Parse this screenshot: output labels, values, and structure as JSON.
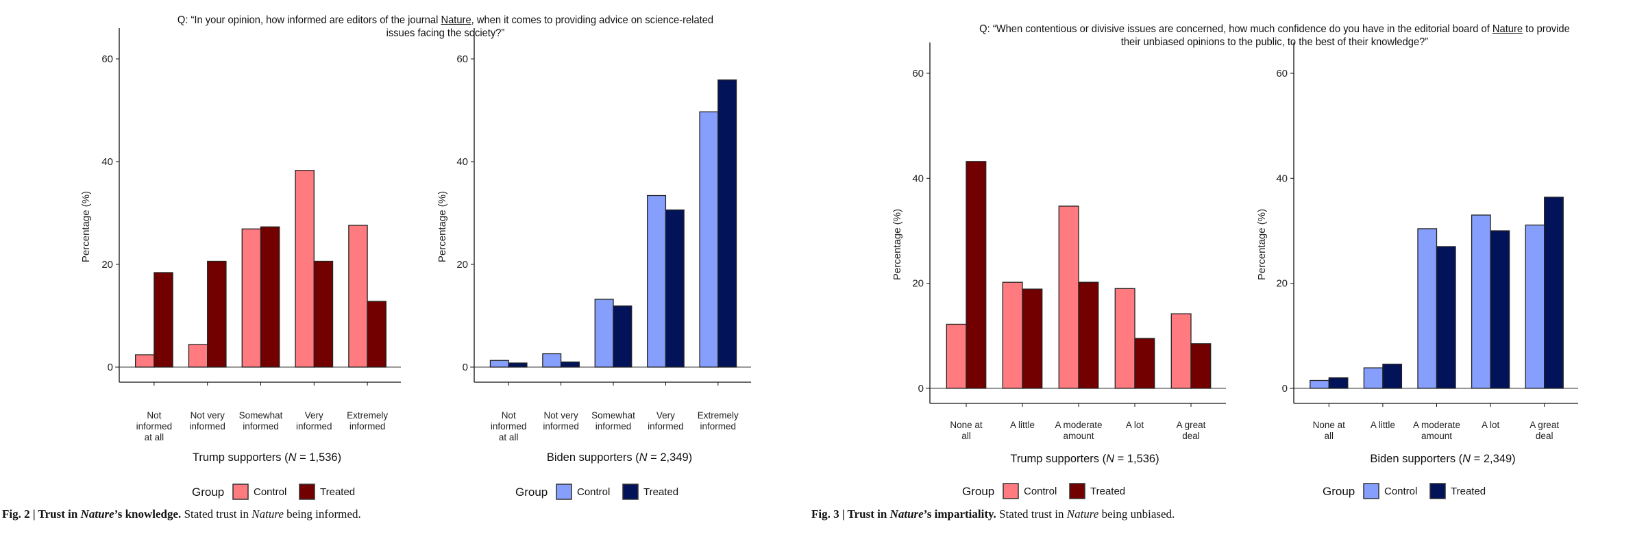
{
  "colors": {
    "trump_control": "#ff7b80",
    "trump_treated": "#730000",
    "biden_control": "#879ffc",
    "biden_treated": "#021359",
    "bar_stroke": "#222222"
  },
  "figures": [
    {
      "question_pre": "Q: “In your opinion, how informed are editors of the journal ",
      "question_underlined": "Nature",
      "question_post": ", when it comes to providing advice on science-related issues facing the society?”",
      "caption_bold_1": "Fig. 2 | Trust in ",
      "caption_bold_italic": "Nature",
      "caption_bold_2": "’s knowledge.",
      "caption_rest_1": " Stated trust in ",
      "caption_rest_italic": "Nature",
      "caption_rest_2": " being informed."
    },
    {
      "question_pre": "Q: “When contentious or divisive issues are concerned, how much confidence do you have in the editorial board of ",
      "question_underlined": "Nature",
      "question_post": " to provide their unbiased opinions to the public, to the best of their knowledge?”",
      "caption_bold_1": "Fig. 3 | Trust in ",
      "caption_bold_italic": "Nature",
      "caption_bold_2": "’s impartiality.",
      "caption_rest_1": " Stated trust in ",
      "caption_rest_italic": "Nature",
      "caption_rest_2": " being unbiased."
    }
  ],
  "chart_data": [
    {
      "type": "bar",
      "figure": "Fig. 2",
      "panel": "trump",
      "title": "",
      "xlabel_pre": "Trump supporters (",
      "xlabel_italic": "N",
      "xlabel_post": " = 1,536)",
      "ylabel": "Percentage (%)",
      "ylim": [
        0,
        60
      ],
      "yticks": [
        0,
        20,
        40,
        60
      ],
      "categories": [
        [
          "Not",
          "informed",
          "at all"
        ],
        [
          "Not very",
          "informed"
        ],
        [
          "Somewhat",
          "informed"
        ],
        [
          "Very",
          "informed"
        ],
        [
          "Extremely",
          "informed"
        ]
      ],
      "series": [
        {
          "name": "Control",
          "values": [
            2.4,
            4.4,
            26.9,
            38.3,
            27.6
          ]
        },
        {
          "name": "Treated",
          "values": [
            18.4,
            20.6,
            27.3,
            20.6,
            12.8
          ]
        }
      ],
      "legend": {
        "title": "Group",
        "entries": [
          "Control",
          "Treated"
        ],
        "placement": "bottom"
      },
      "grid": false
    },
    {
      "type": "bar",
      "figure": "Fig. 2",
      "panel": "biden",
      "title": "",
      "xlabel_pre": "Biden supporters (",
      "xlabel_italic": "N",
      "xlabel_post": " = 2,349)",
      "ylabel": "Percentage (%)",
      "ylim": [
        0,
        60
      ],
      "yticks": [
        0,
        20,
        40,
        60
      ],
      "categories": [
        [
          "Not",
          "informed",
          "at all"
        ],
        [
          "Not very",
          "informed"
        ],
        [
          "Somewhat",
          "informed"
        ],
        [
          "Very",
          "informed"
        ],
        [
          "Extremely",
          "informed"
        ]
      ],
      "series": [
        {
          "name": "Control",
          "values": [
            1.3,
            2.6,
            13.2,
            33.4,
            49.7
          ]
        },
        {
          "name": "Treated",
          "values": [
            0.8,
            1.0,
            11.9,
            30.6,
            55.9
          ]
        }
      ],
      "legend": {
        "title": "Group",
        "entries": [
          "Control",
          "Treated"
        ],
        "placement": "bottom"
      },
      "grid": false
    },
    {
      "type": "bar",
      "figure": "Fig. 3",
      "panel": "trump",
      "title": "",
      "xlabel_pre": "Trump supporters (",
      "xlabel_italic": "N",
      "xlabel_post": " = 1,536)",
      "ylabel": "Percentage (%)",
      "ylim": [
        0,
        60
      ],
      "yticks": [
        0,
        20,
        40,
        60
      ],
      "categories": [
        [
          "None at",
          "all"
        ],
        [
          "A little"
        ],
        [
          "A moderate",
          "amount"
        ],
        [
          "A lot"
        ],
        [
          "A great",
          "deal"
        ]
      ],
      "series": [
        {
          "name": "Control",
          "values": [
            12.2,
            20.2,
            34.7,
            19.0,
            14.2
          ]
        },
        {
          "name": "Treated",
          "values": [
            43.2,
            18.9,
            20.2,
            9.5,
            8.5
          ]
        }
      ],
      "legend": {
        "title": "Group",
        "entries": [
          "Control",
          "Treated"
        ],
        "placement": "bottom"
      },
      "grid": false
    },
    {
      "type": "bar",
      "figure": "Fig. 3",
      "panel": "biden",
      "title": "",
      "xlabel_pre": "Biden supporters (",
      "xlabel_italic": "N",
      "xlabel_post": " = 2,349)",
      "ylabel": "Percentage (%)",
      "ylim": [
        0,
        60
      ],
      "yticks": [
        0,
        20,
        40,
        60
      ],
      "categories": [
        [
          "None at",
          "all"
        ],
        [
          "A little"
        ],
        [
          "A moderate",
          "amount"
        ],
        [
          "A lot"
        ],
        [
          "A great",
          "deal"
        ]
      ],
      "series": [
        {
          "name": "Control",
          "values": [
            1.5,
            3.9,
            30.4,
            33.0,
            31.1
          ]
        },
        {
          "name": "Treated",
          "values": [
            2.0,
            4.6,
            27.0,
            30.0,
            36.4
          ]
        }
      ],
      "legend": {
        "title": "Group",
        "entries": [
          "Control",
          "Treated"
        ],
        "placement": "bottom"
      },
      "grid": false
    }
  ]
}
